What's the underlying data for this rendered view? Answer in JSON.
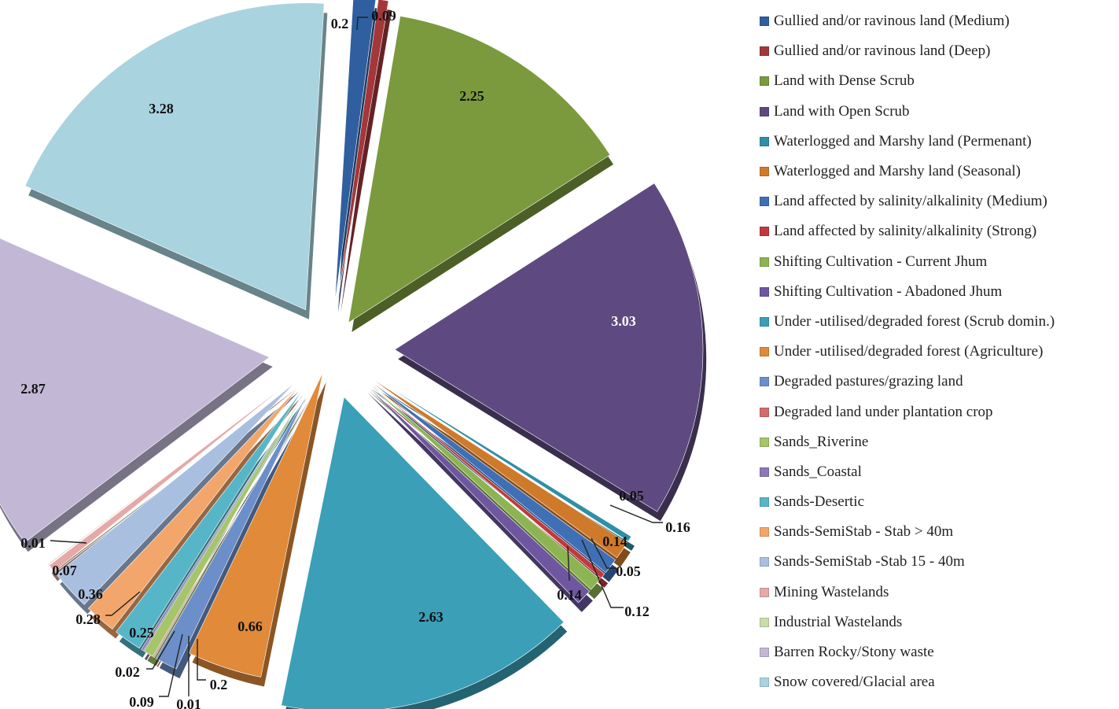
{
  "chart_data": {
    "type": "pie",
    "style": "3d-exploded",
    "legend_position": "right",
    "slices": [
      {
        "label": "Gullied and/or ravinous land (Medium)",
        "value": 0.2,
        "color": "#2f5f9f"
      },
      {
        "label": "Gullied and/or ravinous land (Deep)",
        "value": 0.09,
        "color": "#a3373a"
      },
      {
        "label": "Land with Dense Scrub",
        "value": 2.25,
        "color": "#7a9a3d"
      },
      {
        "label": "Land with Open Scrub",
        "value": 3.03,
        "color": "#5e4a80"
      },
      {
        "label": "Waterlogged and Marshy land (Permenant)",
        "value": 0.05,
        "color": "#2f8fa5"
      },
      {
        "label": "Waterlogged and Marshy land (Seasonal)",
        "value": 0.16,
        "color": "#cf7a2b"
      },
      {
        "label": "Land affected by salinity/alkalinity (Medium)",
        "value": 0.14,
        "color": "#3f6fb5"
      },
      {
        "label": "Land affected by salinity/alkalinity (Strong)",
        "value": 0.05,
        "color": "#c03a3d"
      },
      {
        "label": "Shifting Cultivation - Current Jhum",
        "value": 0.12,
        "color": "#8db453"
      },
      {
        "label": "Shifting Cultivation - Abadoned Jhum",
        "value": 0.14,
        "color": "#6e57a0"
      },
      {
        "label": "Under -utilised/degraded forest (Scrub domin.)",
        "value": 2.63,
        "color": "#3a9fb7"
      },
      {
        "label": "Under -utilised/degraded forest (Agriculture)",
        "value": 0.66,
        "color": "#e08a3a"
      },
      {
        "label": "Degraded pastures/grazing land",
        "value": 0.2,
        "color": "#6c8fc9"
      },
      {
        "label": "Degraded land under plantation crop",
        "value": 0.01,
        "color": "#d46b6b"
      },
      {
        "label": "Sands_Riverine",
        "value": 0.09,
        "color": "#a6c46a"
      },
      {
        "label": "Sands_Coastal",
        "value": 0.02,
        "color": "#8b78b8"
      },
      {
        "label": "Sands-Desertic",
        "value": 0.25,
        "color": "#56b6c8"
      },
      {
        "label": "Sands-SemiStab - Stab > 40m",
        "value": 0.28,
        "color": "#f3a66b"
      },
      {
        "label": "Sands-SemiStab -Stab 15 - 40m",
        "value": 0.36,
        "color": "#a9bfe0"
      },
      {
        "label": "Mining Wastelands",
        "value": 0.07,
        "color": "#e6a8a8"
      },
      {
        "label": "Industrial Wastelands",
        "value": 0.01,
        "color": "#cbdcab"
      },
      {
        "label": "Barren Rocky/Stony waste",
        "value": 2.87,
        "color": "#c2b8d6"
      },
      {
        "label": "Snow covered/Glacial area",
        "value": 3.28,
        "color": "#a9d3df"
      }
    ]
  }
}
